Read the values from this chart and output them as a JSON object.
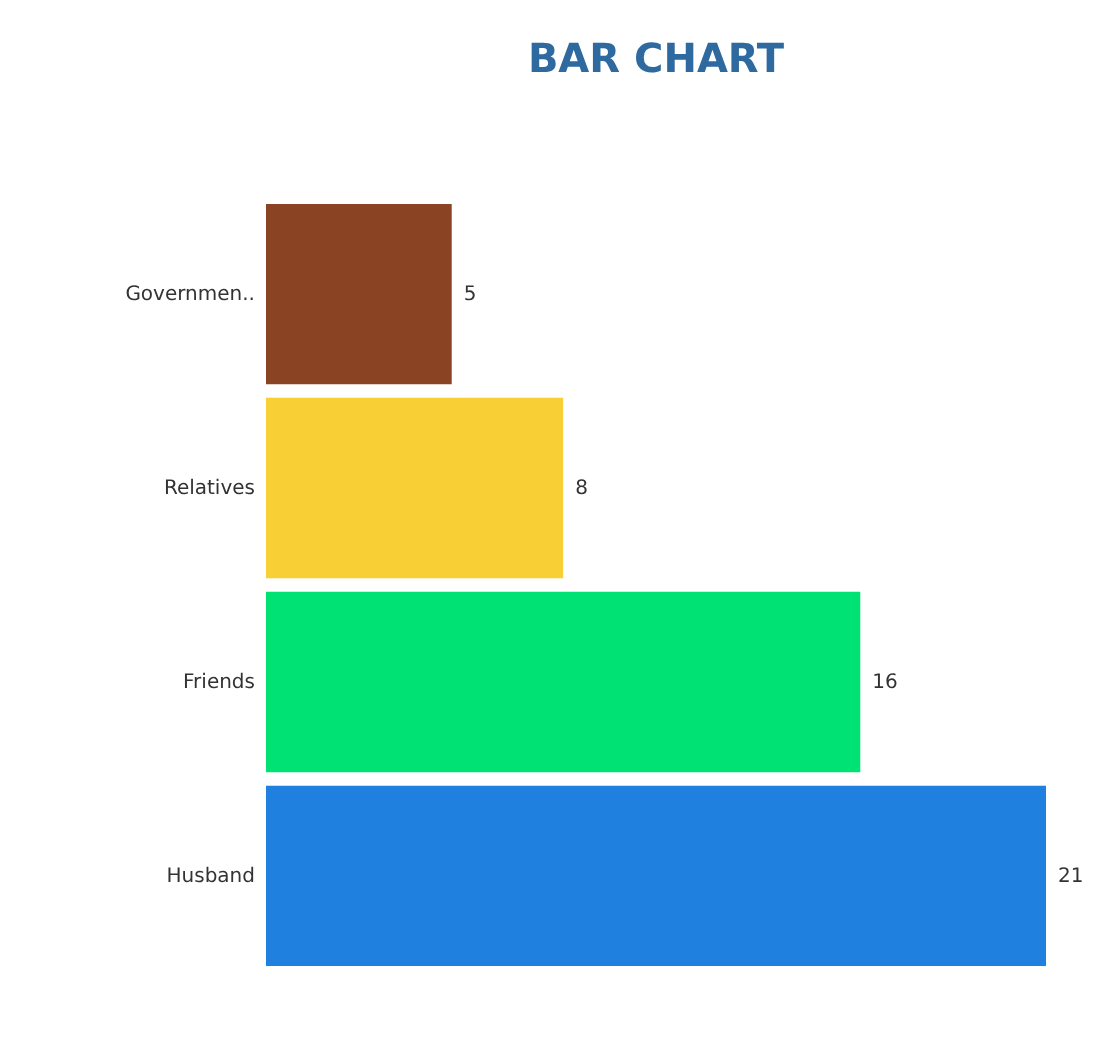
{
  "chart_data": {
    "type": "bar",
    "orientation": "horizontal",
    "title": "BAR CHART",
    "categories": [
      "Governmen..",
      "Relatives",
      "Friends",
      "Husband"
    ],
    "values": [
      5,
      8,
      16,
      21
    ],
    "colors": [
      "#8b4423",
      "#f8cf35",
      "#00e274",
      "#1f80e0"
    ],
    "data_labels": true
  }
}
